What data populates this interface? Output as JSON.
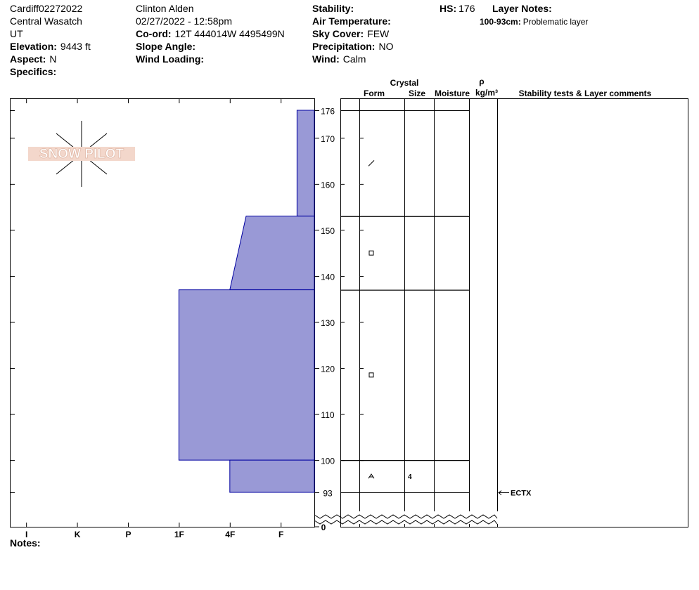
{
  "header": {
    "col1": [
      {
        "value": "Cardiff02272022"
      },
      {
        "value": "Central Wasatch"
      },
      {
        "value": "UT"
      },
      {
        "label": "Elevation:",
        "value": "9443 ft"
      },
      {
        "label": "Aspect:",
        "value": "N"
      },
      {
        "label": "Specifics:"
      }
    ],
    "col2": [
      {
        "value": "Clinton Alden"
      },
      {
        "value": "02/27/2022 - 12:58pm"
      },
      {
        "label": "Co-ord:",
        "value": "12T 444014W 4495499N"
      },
      {
        "label": "Slope Angle:"
      },
      {
        "label": "Wind Loading:"
      }
    ],
    "col3": [
      {
        "label": "Stability:"
      },
      {
        "label": "Air Temperature:"
      },
      {
        "label": "Sky Cover:",
        "value": "FEW"
      },
      {
        "label": "Precipitation:",
        "value": "NO"
      },
      {
        "label": "Wind:",
        "value": "Calm"
      }
    ],
    "hs_label": "HS:",
    "hs": 176,
    "layer_notes_label": "Layer Notes:",
    "layer_note": {
      "label": "100-93cm:",
      "value": "Problematic layer"
    },
    "notes_label": "Notes:",
    "logo": "SNOW PILOT"
  },
  "chart_data": {
    "type": "snow-profile",
    "columns": {
      "crystal": "Crystal",
      "form": "Form",
      "size": "Size",
      "moisture": "Moisture",
      "rho": "ρ",
      "density_unit": "kg/m³",
      "comments": "Stability tests & Layer comments"
    },
    "ylim": [
      93,
      176
    ],
    "yticks": [
      93,
      100,
      110,
      120,
      130,
      140,
      150,
      160,
      170,
      176
    ],
    "y_floor_tick": 0,
    "xlim": [
      6.32,
      0.34
    ],
    "xticks": [
      {
        "value": 6,
        "label": "I"
      },
      {
        "value": 5,
        "label": "K"
      },
      {
        "value": 4,
        "label": "P"
      },
      {
        "value": 3,
        "label": "1F"
      },
      {
        "value": 2,
        "label": "4F"
      },
      {
        "value": 1,
        "label": "F"
      }
    ],
    "color": "#9999d6",
    "layers": [
      {
        "top": 176,
        "bottom": 153,
        "hardness_top": 0.68,
        "hardness_bottom": 0.68
      },
      {
        "top": 153,
        "bottom": 137,
        "hardness_top": 1.68,
        "hardness_bottom": 2
      },
      {
        "top": 137,
        "bottom": 100,
        "hardness_top": 3,
        "hardness_bottom": 3
      },
      {
        "top": 100,
        "bottom": 93,
        "hardness_top": 2,
        "hardness_bottom": 2,
        "size": 4
      }
    ],
    "tests": [
      {
        "label": "ECTX",
        "depth": 93
      }
    ]
  }
}
